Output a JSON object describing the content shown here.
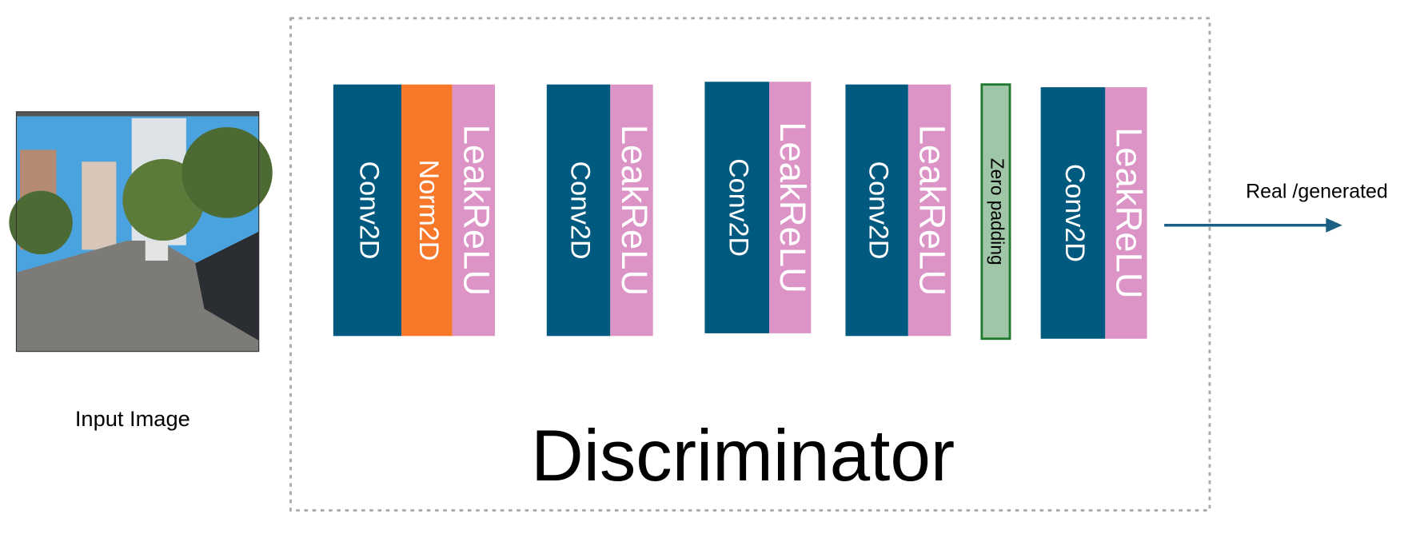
{
  "input": {
    "label": "Input Image"
  },
  "discriminator": {
    "title": "Discriminator",
    "layers": [
      "Conv2D",
      "Norm2D",
      "LeakReLU",
      "Conv2D",
      "LeakReLU",
      "Conv2D",
      "LeakReLU",
      "Conv2D",
      "LeakReLU",
      "Zero padding",
      "Conv2D",
      "LeakReLU"
    ]
  },
  "output": {
    "label": "Real /generated"
  }
}
